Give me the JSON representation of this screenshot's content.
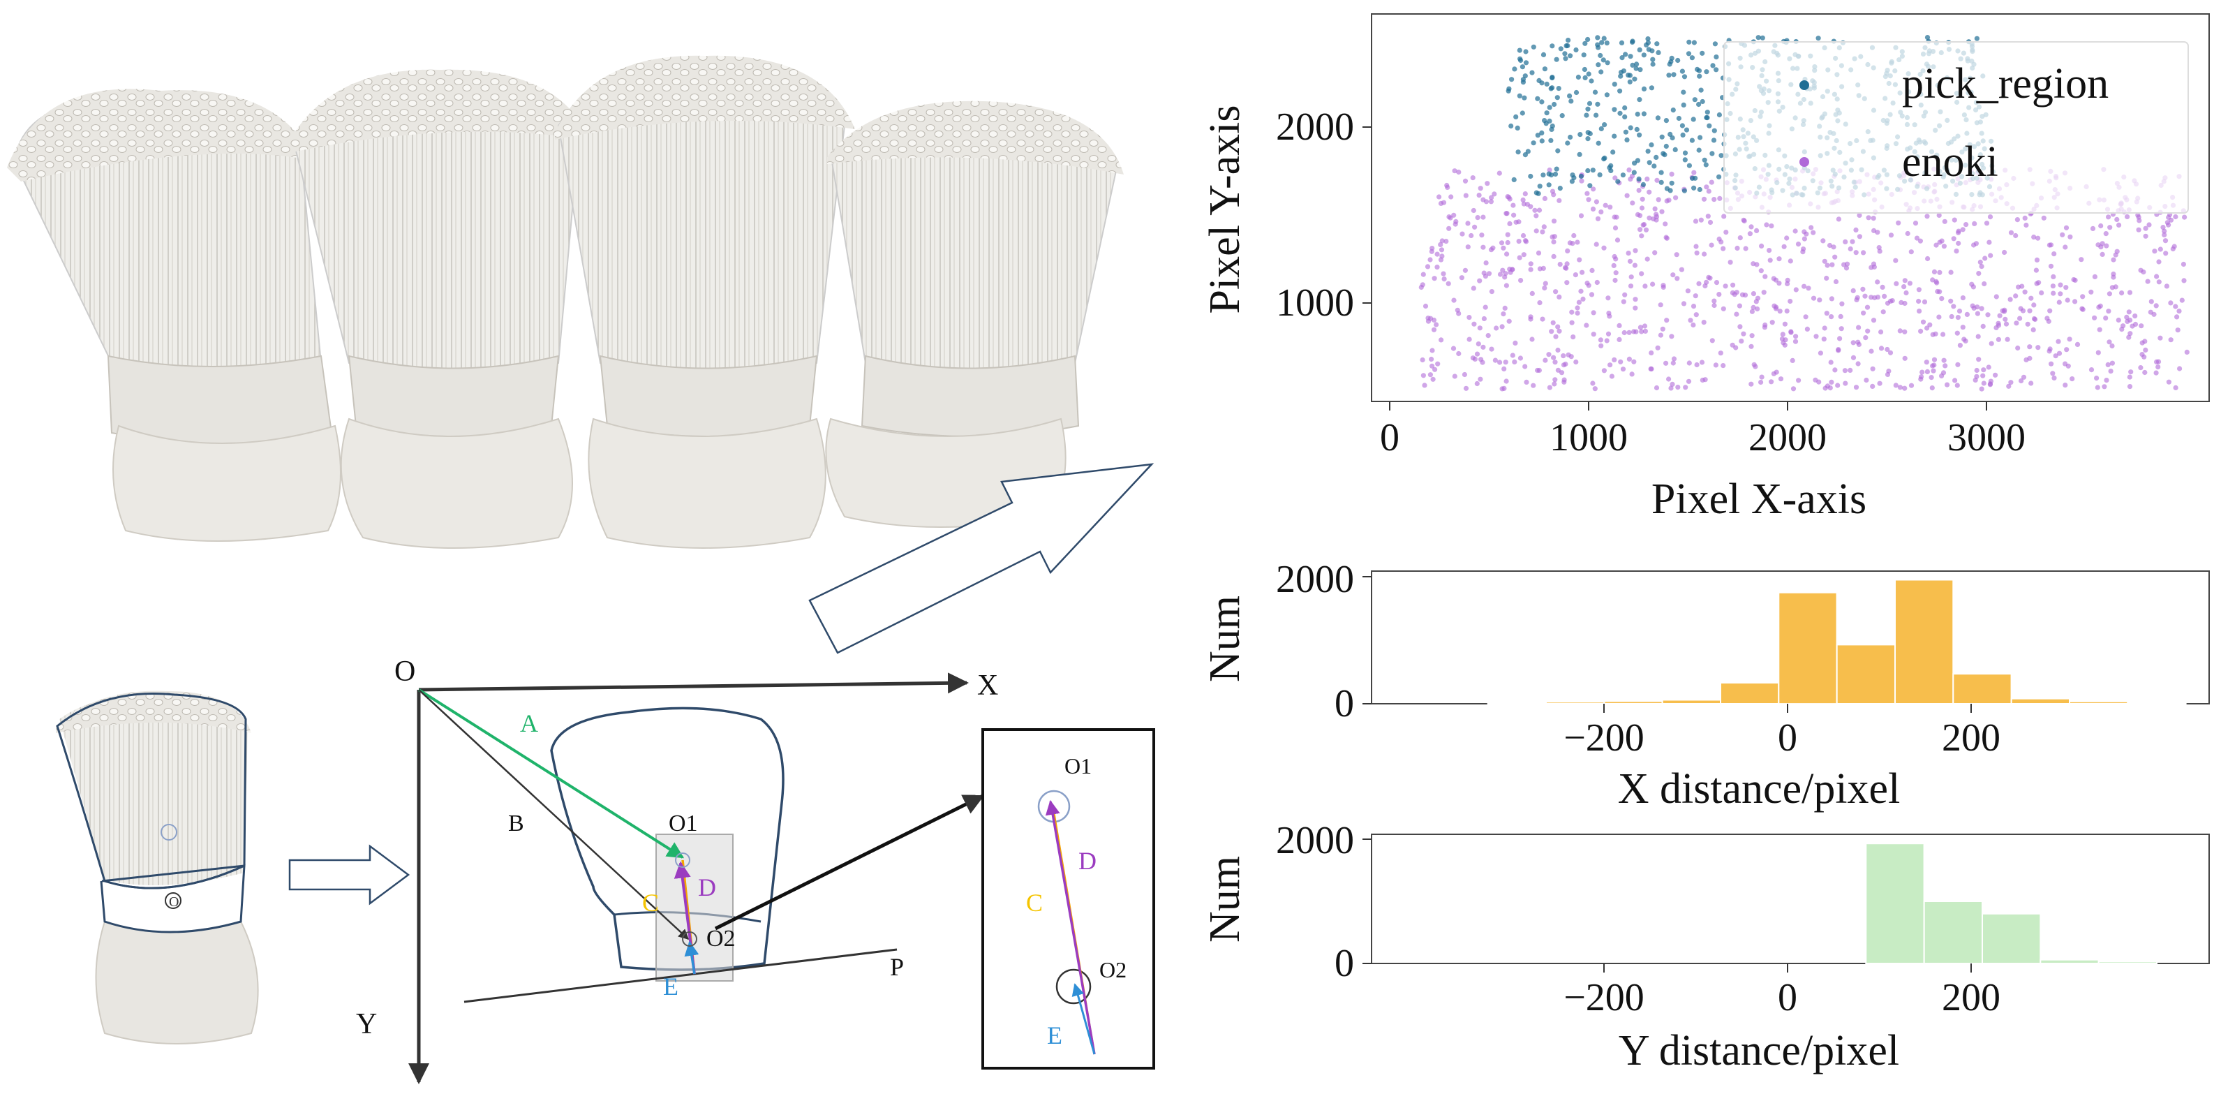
{
  "colors": {
    "pick": "#1f6e94",
    "enoki": "#b06ad8",
    "x_hist": "#f7be4c",
    "y_hist": "#c8ecc4",
    "vec_a": "#1fb36a",
    "vec_c": "#f5c400",
    "vec_d": "#9b3cc0",
    "vec_e": "#2e8fd6",
    "outline": "#2f4a6a"
  },
  "diagram": {
    "origin": "O",
    "x_axis": "X",
    "y_axis": "Y",
    "vectors": [
      "A",
      "B",
      "C",
      "D",
      "E"
    ],
    "points": [
      "O1",
      "O2"
    ],
    "line_p": "P",
    "small_origin": "O",
    "zoom": {
      "o1": "O1",
      "o2": "O2",
      "c": "C",
      "d": "D",
      "e": "E"
    }
  },
  "chart_data": [
    {
      "type": "scatter",
      "xlabel": "Pixel X-axis",
      "ylabel": "Pixel Y-axis",
      "xlim": [
        -80,
        3800
      ],
      "ylim": [
        380,
        2580
      ],
      "xticks": [
        "0",
        "1000",
        "2000",
        "3000"
      ],
      "yticks": [
        "1000",
        "2000"
      ],
      "legend_position": "top-right",
      "series": [
        {
          "name": "pick_region",
          "x_range": [
            550,
            2800
          ],
          "y_range": [
            1550,
            2450
          ]
        },
        {
          "name": "enoki",
          "x_range": [
            150,
            3700
          ],
          "y_range": [
            450,
            1700
          ]
        }
      ]
    },
    {
      "type": "bar",
      "xlabel": "X distance/pixel",
      "ylabel": "Num",
      "xlim": [
        -400,
        320
      ],
      "ylim": [
        0,
        2000
      ],
      "xticks": [
        "−200",
        "0",
        "200"
      ],
      "yticks": [
        "0",
        "2000"
      ],
      "bin_edges": [
        -300,
        -250,
        -200,
        -150,
        -100,
        -50,
        0,
        50,
        100,
        150,
        200,
        250
      ],
      "values": [
        20,
        30,
        40,
        60,
        330,
        1750,
        930,
        1950,
        470,
        80,
        35,
        15
      ]
    },
    {
      "type": "bar",
      "xlabel": "Y distance/pixel",
      "ylabel": "Num",
      "xlim": [
        -400,
        320
      ],
      "ylim": [
        0,
        2000
      ],
      "xticks": [
        "−200",
        "0",
        "200"
      ],
      "yticks": [
        "0",
        "2000"
      ],
      "bin_edges": [
        25,
        75,
        125,
        175,
        225,
        275
      ],
      "values": [
        1930,
        1000,
        800,
        60,
        30
      ]
    }
  ]
}
